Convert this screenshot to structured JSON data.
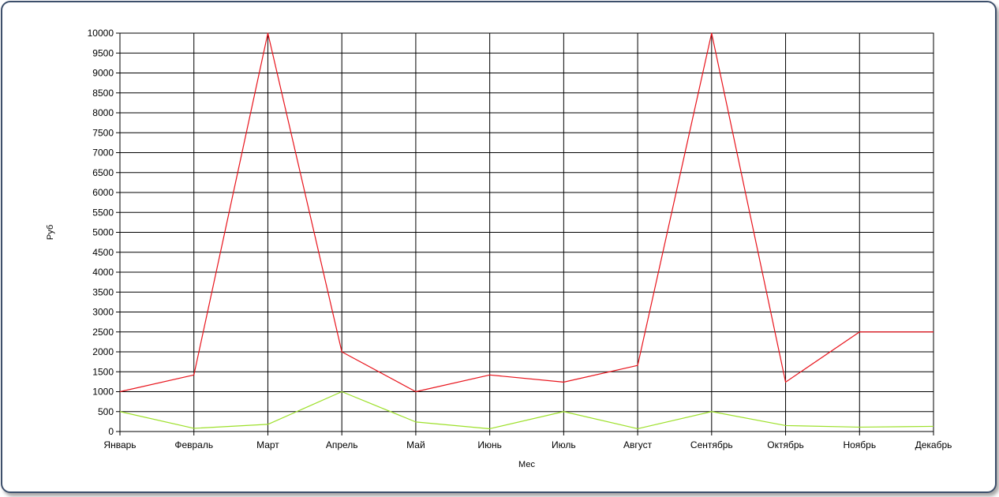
{
  "chart_data": {
    "type": "line",
    "categories": [
      "Январь",
      "Февраль",
      "Март",
      "Апрель",
      "Май",
      "Июнь",
      "Июль",
      "Август",
      "Сентябрь",
      "Октябрь",
      "Ноябрь",
      "Декабрь"
    ],
    "series": [
      {
        "color": "#e8141c",
        "values": [
          1000,
          1420,
          10000,
          2000,
          1000,
          1420,
          1240,
          1660,
          10000,
          1240,
          2500,
          2500
        ]
      },
      {
        "color": "#9de02a",
        "values": [
          500,
          80,
          180,
          1000,
          240,
          70,
          500,
          70,
          500,
          150,
          110,
          130
        ]
      }
    ],
    "xlabel": "Мес",
    "ylabel": "Руб",
    "ylim": [
      0,
      10000
    ],
    "ytick_step": 500,
    "grid": true,
    "legend": "none"
  }
}
